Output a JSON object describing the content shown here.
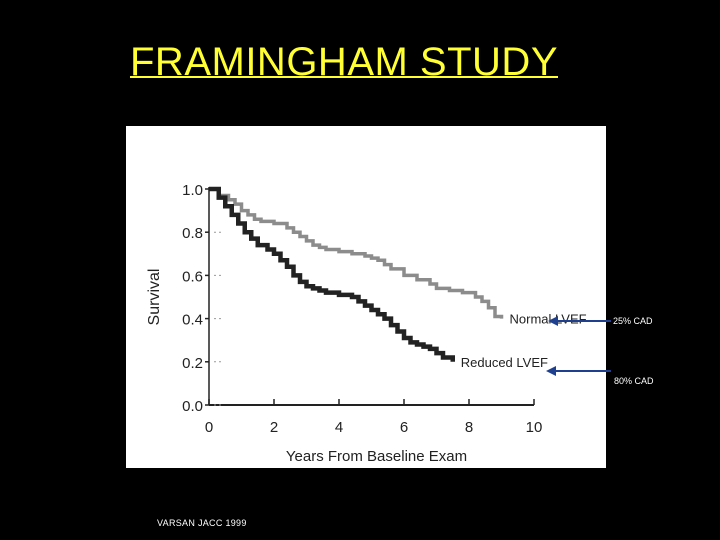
{
  "slide": {
    "title": "FRAMINGHAM STUDY",
    "citation": "VARSAN JACC 1999",
    "annotations": [
      "25% CAD",
      "80% CAD"
    ]
  },
  "colors": {
    "background": "#000000",
    "title": "#ffff33",
    "annotation_arrow": "#1f3f8f"
  },
  "chart_data": {
    "type": "line",
    "title": "",
    "xlabel": "Years From Baseline Exam",
    "ylabel": "Survival",
    "xlim": [
      0,
      10
    ],
    "ylim": [
      0,
      1
    ],
    "xticks": [
      0,
      2,
      4,
      6,
      8,
      10
    ],
    "yticks": [
      0.0,
      0.2,
      0.4,
      0.6,
      0.8,
      1.0
    ],
    "ytick_labels": [
      "0.0",
      "0.2",
      "0.4",
      "0.6",
      "0.8",
      "1.0"
    ],
    "grid": false,
    "series": [
      {
        "name": "Normal LVEF",
        "color": "#8c8c8c",
        "x": [
          0,
          0.3,
          0.6,
          0.8,
          1.0,
          1.2,
          1.4,
          1.6,
          2.0,
          2.4,
          2.6,
          2.8,
          3.0,
          3.2,
          3.4,
          3.6,
          4.0,
          4.4,
          4.8,
          5.0,
          5.2,
          5.4,
          5.6,
          6.0,
          6.4,
          6.8,
          7.0,
          7.4,
          7.8,
          8.2,
          8.4,
          8.6,
          8.8,
          9.0
        ],
        "y": [
          1.0,
          0.97,
          0.95,
          0.93,
          0.9,
          0.88,
          0.86,
          0.85,
          0.84,
          0.82,
          0.8,
          0.78,
          0.76,
          0.74,
          0.73,
          0.72,
          0.71,
          0.7,
          0.69,
          0.68,
          0.67,
          0.65,
          0.63,
          0.6,
          0.58,
          0.56,
          0.54,
          0.53,
          0.52,
          0.5,
          0.48,
          0.45,
          0.41,
          0.4
        ]
      },
      {
        "name": "Reduced LVEF",
        "color": "#222222",
        "x": [
          0,
          0.3,
          0.5,
          0.7,
          0.9,
          1.1,
          1.3,
          1.5,
          1.8,
          2.0,
          2.2,
          2.4,
          2.6,
          2.8,
          3.0,
          3.2,
          3.4,
          3.6,
          4.0,
          4.4,
          4.6,
          4.8,
          5.0,
          5.2,
          5.4,
          5.6,
          5.8,
          6.0,
          6.2,
          6.4,
          6.6,
          6.8,
          7.0,
          7.2,
          7.5
        ],
        "y": [
          1.0,
          0.96,
          0.92,
          0.88,
          0.84,
          0.8,
          0.77,
          0.74,
          0.72,
          0.7,
          0.67,
          0.64,
          0.6,
          0.57,
          0.55,
          0.54,
          0.53,
          0.52,
          0.51,
          0.5,
          0.48,
          0.46,
          0.44,
          0.42,
          0.4,
          0.37,
          0.34,
          0.31,
          0.29,
          0.28,
          0.27,
          0.26,
          0.24,
          0.22,
          0.2
        ]
      }
    ],
    "series_labels": [
      "Normal LVEF",
      "Reduced LVEF"
    ]
  }
}
